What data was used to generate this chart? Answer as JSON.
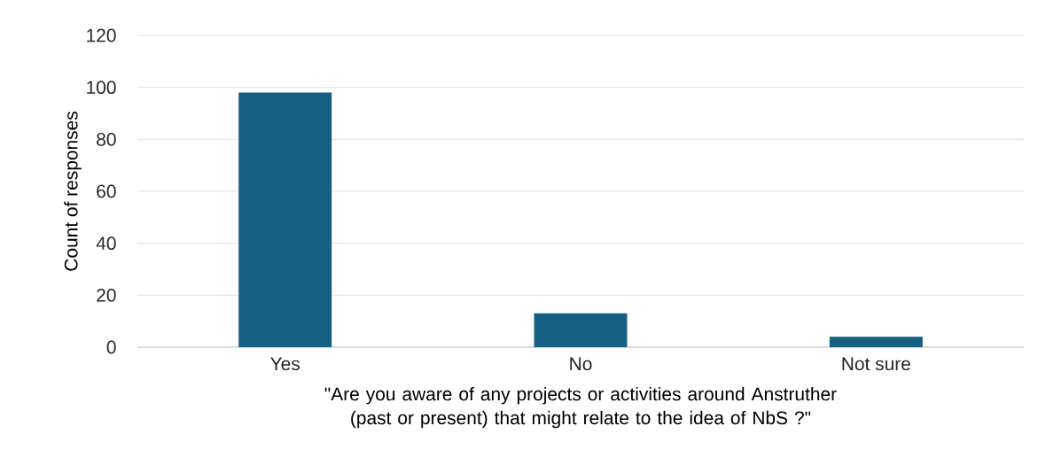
{
  "chart_data": {
    "type": "bar",
    "xlabel": "\"Are you aware of any projects or activities around Anstruther (past or present) that might relate to the idea of NbS ?\"",
    "ylabel": "Count of responses",
    "categories": [
      "Yes",
      "No",
      "Not sure"
    ],
    "values": [
      98,
      13,
      4
    ],
    "color": "#156082",
    "ylim": [
      0,
      120
    ],
    "yticks": [
      0,
      20,
      40,
      60,
      80,
      100,
      120
    ],
    "grid": "y"
  }
}
